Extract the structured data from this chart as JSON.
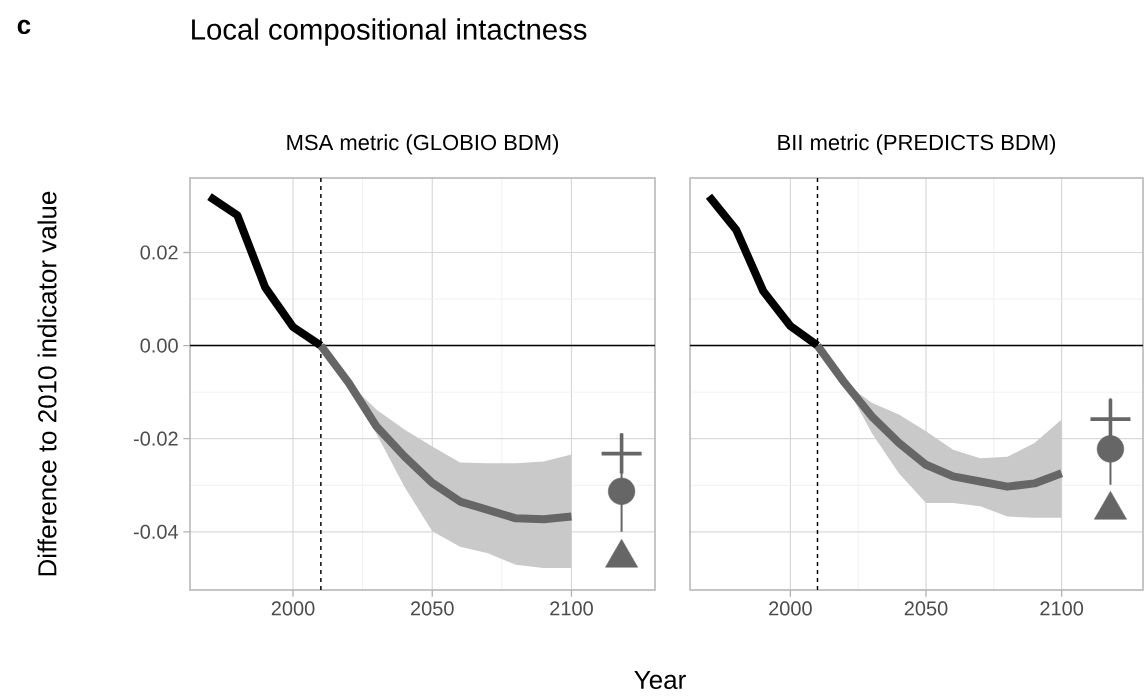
{
  "chart_data": [
    {
      "type": "line",
      "title": "MSA metric (GLOBIO BDM)",
      "xlabel": "Year",
      "ylabel": "Difference to 2010 indicator value",
      "annotations": [
        "c",
        "Local compositional intactness"
      ],
      "xlim": [
        1963,
        2130
      ],
      "ylim": [
        -0.0525,
        0.036
      ],
      "xticks": [
        2000,
        2050,
        2100
      ],
      "yticks": [
        {
          "value": 0.02,
          "label": "0.02"
        },
        {
          "value": 0,
          "label": "0.00"
        },
        {
          "value": -0.02,
          "label": "-0.02"
        },
        {
          "value": -0.04,
          "label": "-0.04"
        }
      ],
      "grid": true,
      "ref_lines": [
        {
          "axis": "y",
          "value": 0,
          "color": "#000000",
          "line_style": "solid"
        },
        {
          "axis": "x",
          "value": 2010,
          "color": "#000000",
          "line_style": "dashed"
        }
      ],
      "series": [
        {
          "color": "#000000",
          "marker": "none",
          "x": [
            1970,
            1980,
            1990,
            2000,
            2010
          ],
          "values": [
            0.032,
            0.028,
            0.0125,
            0.004,
            0
          ]
        },
        {
          "color": "#666666",
          "marker": "none",
          "x": [
            2010,
            2020,
            2030,
            2040,
            2050,
            2060,
            2070,
            2080,
            2090,
            2100
          ],
          "values": [
            0,
            -0.008,
            -0.0174,
            -0.0238,
            -0.0295,
            -0.0335,
            -0.0353,
            -0.0371,
            -0.0373,
            -0.0367
          ],
          "upper": [
            0,
            -0.008,
            -0.0138,
            -0.018,
            -0.0217,
            -0.0251,
            -0.0253,
            -0.0253,
            -0.0249,
            -0.0234
          ],
          "lower": [
            0,
            -0.008,
            -0.019,
            -0.0303,
            -0.0399,
            -0.0432,
            -0.0446,
            -0.0471,
            -0.0478,
            -0.0478
          ]
        },
        {
          "type": "scatter",
          "color": "#666666",
          "marker": "cross",
          "x": [
            2118
          ],
          "values": [
            -0.0232
          ]
        },
        {
          "type": "scatter",
          "color": "#666666",
          "marker": "circle",
          "x": [
            2118
          ],
          "values": [
            -0.0313
          ],
          "errors": [
            [
              -0.04,
              -0.0188
            ]
          ]
        },
        {
          "type": "scatter",
          "color": "#666666",
          "marker": "triangle",
          "x": [
            2118
          ],
          "values": [
            -0.0456
          ]
        }
      ]
    },
    {
      "type": "line",
      "title": "BII metric (PREDICTS BDM)",
      "tick_labels": "x",
      "xlim": [
        1963,
        2130
      ],
      "ylim": [
        -0.0525,
        0.036
      ],
      "xticks": [
        2000,
        2050,
        2100
      ],
      "yticks": [
        0.02,
        0,
        -0.02,
        -0.04
      ],
      "grid": true,
      "ref_lines": [
        {
          "axis": "y",
          "value": 0,
          "color": "#000000",
          "line_style": "solid"
        },
        {
          "axis": "x",
          "value": 2010,
          "color": "#000000",
          "line_style": "dashed"
        }
      ],
      "series": [
        {
          "color": "#000000",
          "marker": "none",
          "x": [
            1970,
            1980,
            1990,
            2000,
            2010
          ],
          "values": [
            0.0321,
            0.0249,
            0.0117,
            0.0042,
            0
          ]
        },
        {
          "color": "#666666",
          "marker": "none",
          "x": [
            2010,
            2020,
            2030,
            2040,
            2050,
            2060,
            2070,
            2080,
            2090,
            2100
          ],
          "values": [
            0,
            -0.008,
            -0.0152,
            -0.0209,
            -0.0256,
            -0.0281,
            -0.0292,
            -0.0303,
            -0.0296,
            -0.0274
          ],
          "upper": [
            0,
            -0.008,
            -0.0123,
            -0.0148,
            -0.0184,
            -0.0224,
            -0.0242,
            -0.0239,
            -0.0209,
            -0.0159
          ],
          "lower": [
            0,
            -0.008,
            -0.0188,
            -0.0274,
            -0.0338,
            -0.0338,
            -0.0345,
            -0.0367,
            -0.037,
            -0.037
          ]
        },
        {
          "type": "scatter",
          "color": "#666666",
          "marker": "cross",
          "x": [
            2118
          ],
          "values": [
            -0.0158
          ]
        },
        {
          "type": "scatter",
          "color": "#666666",
          "marker": "circle",
          "x": [
            2118
          ],
          "values": [
            -0.0222
          ],
          "errors": [
            [
              -0.0299,
              -0.0113
            ]
          ]
        },
        {
          "type": "scatter",
          "color": "#666666",
          "marker": "triangle",
          "x": [
            2118
          ],
          "values": [
            -0.0353
          ]
        }
      ]
    }
  ]
}
